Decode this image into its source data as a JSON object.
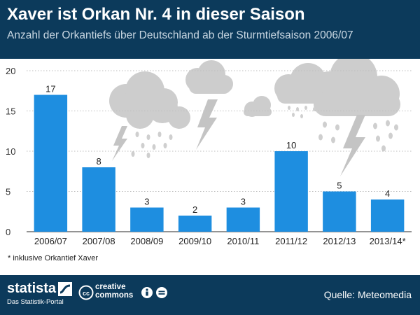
{
  "header": {
    "title": "Xaver ist Orkan Nr. 4 in dieser Saison",
    "subtitle": "Anzahl der Orkantiefs über Deutschland ab der Sturmtiefsaison 2006/07"
  },
  "footnote": "* inklusive Orkantief Xaver",
  "footer": {
    "brand": "statista",
    "brand_tagline": "Das Statistik-Portal",
    "license_line1": "creative",
    "license_line2": "commons",
    "license_icon_1": "cc-icon",
    "license_icon_2": "by-icon",
    "license_icon_3": "nd-icon",
    "source": "Quelle: Meteomedia"
  },
  "colors": {
    "bar": "#1e8ee0",
    "header": "#0c3a5b",
    "cloud": "#cccccc"
  },
  "chart_data": {
    "type": "bar",
    "categories": [
      "2006/07",
      "2007/08",
      "2008/09",
      "2009/10",
      "2010/11",
      "2011/12",
      "2012/13",
      "2013/14*"
    ],
    "values": [
      17,
      8,
      3,
      2,
      3,
      10,
      5,
      4
    ],
    "data_labels": [
      "17",
      "8",
      "3",
      "2",
      "3",
      "10",
      "5",
      "4"
    ],
    "title": "Xaver ist Orkan Nr. 4 in dieser Saison",
    "subtitle": "Anzahl der Orkantiefs über Deutschland ab der Sturmtiefsaison 2006/07",
    "ylim": [
      0,
      20
    ],
    "yticks": [
      0,
      5,
      10,
      15,
      20
    ],
    "grid": true,
    "legend": "none"
  }
}
